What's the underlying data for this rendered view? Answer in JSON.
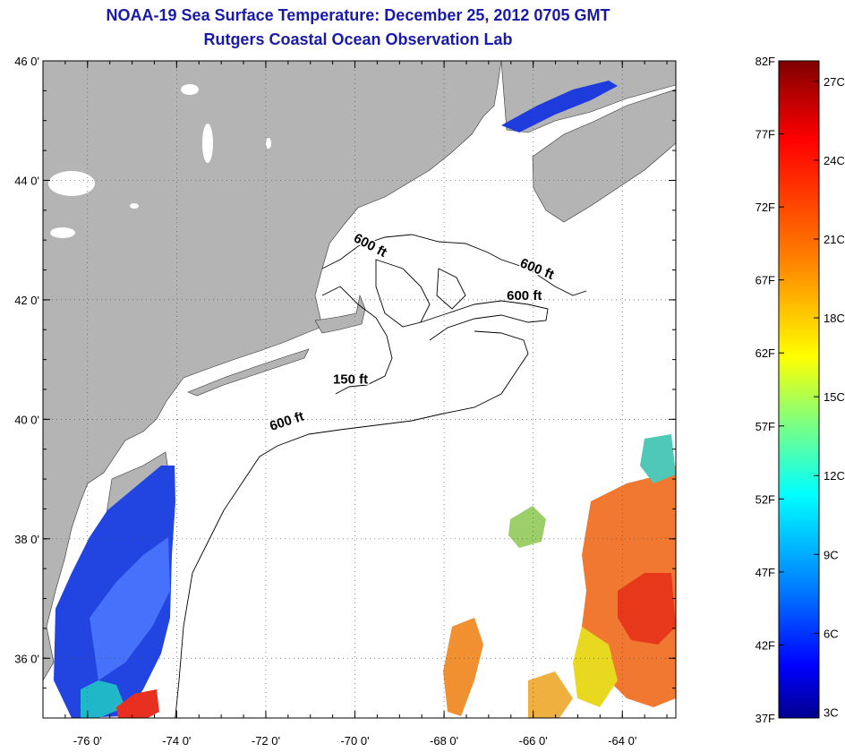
{
  "title": {
    "line1": "NOAA-19 Sea Surface Temperature:  December 25, 2012 0705 GMT",
    "line2": "Rutgers Coastal Ocean Observation Lab"
  },
  "map": {
    "lon_range": [
      -77,
      -62.8
    ],
    "lat_range": [
      35,
      46
    ],
    "lat_ticks": [
      {
        "value": 46,
        "label": "46 0'"
      },
      {
        "value": 44,
        "label": "44 0'"
      },
      {
        "value": 42,
        "label": "42 0'"
      },
      {
        "value": 40,
        "label": "40 0'"
      },
      {
        "value": 38,
        "label": "38 0'"
      },
      {
        "value": 36,
        "label": "36 0'"
      }
    ],
    "lon_ticks": [
      {
        "value": -76,
        "label": "-76 0'"
      },
      {
        "value": -74,
        "label": "-74 0'"
      },
      {
        "value": -72,
        "label": "-72 0'"
      },
      {
        "value": -70,
        "label": "-70 0'"
      },
      {
        "value": -68,
        "label": "-68 0'"
      },
      {
        "value": -66,
        "label": "-66 0'"
      },
      {
        "value": -64,
        "label": "-64 0'"
      }
    ],
    "contour_labels": [
      {
        "text": "600 ft",
        "lon": -69.7,
        "lat": 42.85,
        "rotate": 28
      },
      {
        "text": "600 ft",
        "lon": -65.95,
        "lat": 42.45,
        "rotate": 22
      },
      {
        "text": "600 ft",
        "lon": -66.2,
        "lat": 42.0,
        "rotate": 0
      },
      {
        "text": "150 ft",
        "lon": -70.1,
        "lat": 40.6,
        "rotate": 0
      },
      {
        "text": "600 ft",
        "lon": -71.5,
        "lat": 39.9,
        "rotate": -18
      }
    ],
    "colors": {
      "land": "#b4b4b4",
      "water": "#ffffff",
      "lakes": "#ffffff",
      "title": "#1a1aa8"
    }
  },
  "colorbar": {
    "fahrenheit_labels": [
      "82F",
      "77F",
      "72F",
      "67F",
      "62F",
      "57F",
      "52F",
      "47F",
      "42F",
      "37F"
    ],
    "celsius_labels": [
      "27C",
      "24C",
      "21C",
      "18C",
      "15C",
      "12C",
      "9C",
      "6C",
      "3C"
    ],
    "range_f": [
      37,
      82
    ],
    "stops": [
      "#7f0000",
      "#ff0000",
      "#ff7f00",
      "#ffff00",
      "#7fff7f",
      "#00ffff",
      "#007fff",
      "#0000ff",
      "#00008f"
    ]
  }
}
